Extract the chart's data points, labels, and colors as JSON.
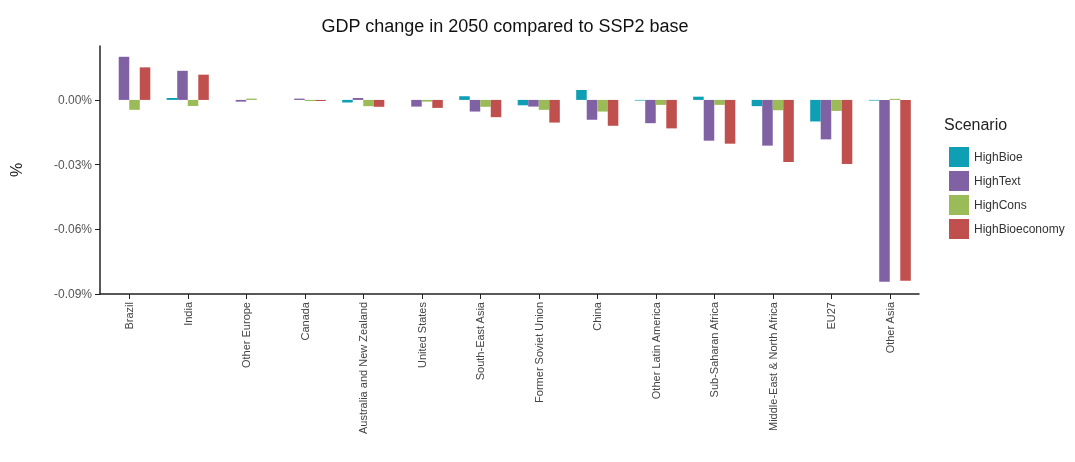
{
  "chart_data": {
    "type": "bar",
    "title": "GDP change in 2050 compared to SSP2 base",
    "ylabel": "%",
    "legend_title": "Scenario",
    "legend": "right",
    "categories": [
      "Brazil",
      "India",
      "Other Europe",
      "Canada",
      "Australia and New Zealand",
      "United States",
      "South-East Asia",
      "Former Soviet Union",
      "China",
      "Other Latin America",
      "Sub-Saharan Africa",
      "Middle-East & North Africa",
      "EU27",
      "Other Asia"
    ],
    "series": [
      {
        "name": "HighBioe",
        "color": "#0e9fb5",
        "values": [
          0,
          0.0009,
          0,
          0,
          -0.0012,
          null,
          0.0017,
          -0.0025,
          0.0046,
          -0.0003,
          0.0015,
          -0.0029,
          -0.01,
          -0.0003
        ]
      },
      {
        "name": "HighText",
        "color": "#8061a4",
        "values": [
          0.02,
          0.0135,
          -0.0008,
          0.0006,
          0.0009,
          -0.0031,
          -0.0054,
          -0.0031,
          -0.0092,
          -0.0108,
          -0.0189,
          -0.0212,
          -0.0183,
          -0.0843
        ]
      },
      {
        "name": "HighCons",
        "color": "#9bbb59",
        "values": [
          -0.0046,
          -0.0028,
          0.0006,
          -0.0005,
          -0.0029,
          -0.0008,
          -0.0032,
          -0.0046,
          -0.0054,
          -0.0023,
          -0.0023,
          -0.0048,
          -0.0051,
          0.0005
        ]
      },
      {
        "name": "HighBioeconomy",
        "color": "#c0504d",
        "values": [
          0.0151,
          0.0117,
          null,
          -0.0005,
          -0.0032,
          -0.0037,
          -0.008,
          -0.0105,
          -0.012,
          -0.0132,
          -0.0203,
          -0.0288,
          -0.0297,
          -0.0838
        ]
      }
    ],
    "ylim": [
      -0.09,
      0.025
    ],
    "yticks": [
      {
        "value": -0.09,
        "label": "-0.09%"
      },
      {
        "value": -0.06,
        "label": "-0.06%"
      },
      {
        "value": -0.03,
        "label": "-0.03%"
      },
      {
        "value": 0,
        "label": "0.00%"
      }
    ],
    "grid": false
  }
}
